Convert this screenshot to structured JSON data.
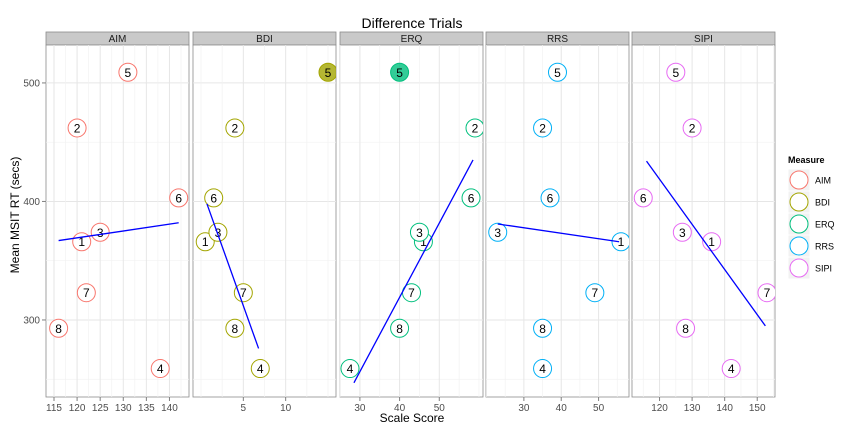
{
  "chart_data": {
    "type": "scatter",
    "title": "Difference Trials",
    "xlabel": "Scale Score",
    "ylabel": "Mean MSIT RT (secs)",
    "ylim": [
      235,
      532
    ],
    "y_ticks": [
      300,
      400,
      500
    ],
    "legend": {
      "title": "Measure",
      "placement": "right",
      "entries": [
        {
          "name": "AIM",
          "color": "#F8766D"
        },
        {
          "name": "BDI",
          "color": "#A3A500"
        },
        {
          "name": "ERQ",
          "color": "#00BF7D"
        },
        {
          "name": "RRS",
          "color": "#00B0F6"
        },
        {
          "name": "SIPI",
          "color": "#E76BF3"
        }
      ]
    },
    "line_color": "#0000FF",
    "panels": [
      {
        "name": "AIM",
        "color": "#F8766D",
        "xlim": [
          115,
          142.5
        ],
        "x_ticks": [
          115,
          120,
          125,
          130,
          135,
          140
        ],
        "points": [
          {
            "label": "1",
            "x": 121,
            "y": 366
          },
          {
            "label": "2",
            "x": 120,
            "y": 462
          },
          {
            "label": "3",
            "x": 125,
            "y": 374
          },
          {
            "label": "4",
            "x": 138,
            "y": 259
          },
          {
            "label": "5",
            "x": 131,
            "y": 509
          },
          {
            "label": "6",
            "x": 142,
            "y": 403
          },
          {
            "label": "7",
            "x": 122,
            "y": 323
          },
          {
            "label": "8",
            "x": 116,
            "y": 293
          }
        ],
        "fit_line": [
          [
            116,
            367
          ],
          [
            142,
            382
          ]
        ]
      },
      {
        "name": "BDI",
        "color": "#A3A500",
        "xlim": [
          0,
          15
        ],
        "x_ticks": [
          5,
          10
        ],
        "points": [
          {
            "label": "1",
            "x": 0.5,
            "y": 366
          },
          {
            "label": "2",
            "x": 4,
            "y": 462
          },
          {
            "label": "3",
            "x": 2,
            "y": 374
          },
          {
            "label": "4",
            "x": 7,
            "y": 259
          },
          {
            "label": "5",
            "x": 15,
            "y": 509,
            "highlighted": true
          },
          {
            "label": "6",
            "x": 1.5,
            "y": 403
          },
          {
            "label": "7",
            "x": 5,
            "y": 323
          },
          {
            "label": "8",
            "x": 4,
            "y": 293
          }
        ],
        "fit_line": [
          [
            0.7,
            398
          ],
          [
            6.8,
            276
          ]
        ]
      },
      {
        "name": "ERQ",
        "color": "#00BF7D",
        "xlim": [
          27,
          59
        ],
        "x_ticks": [
          30,
          40,
          50
        ],
        "points": [
          {
            "label": "1",
            "x": 46,
            "y": 366
          },
          {
            "label": "2",
            "x": 59,
            "y": 462
          },
          {
            "label": "3",
            "x": 45,
            "y": 374
          },
          {
            "label": "4",
            "x": 27.5,
            "y": 259
          },
          {
            "label": "5",
            "x": 40,
            "y": 509,
            "highlighted": true
          },
          {
            "label": "6",
            "x": 58,
            "y": 403
          },
          {
            "label": "7",
            "x": 43,
            "y": 323
          },
          {
            "label": "8",
            "x": 40,
            "y": 293
          }
        ],
        "fit_line": [
          [
            28.5,
            247
          ],
          [
            58.5,
            435
          ]
        ]
      },
      {
        "name": "RRS",
        "color": "#00B0F6",
        "xlim": [
          22,
          56
        ],
        "x_ticks": [
          30,
          40,
          50
        ],
        "points": [
          {
            "label": "1",
            "x": 56,
            "y": 366
          },
          {
            "label": "2",
            "x": 35,
            "y": 462
          },
          {
            "label": "3",
            "x": 23,
            "y": 374
          },
          {
            "label": "4",
            "x": 35,
            "y": 259
          },
          {
            "label": "5",
            "x": 39,
            "y": 509
          },
          {
            "label": "6",
            "x": 37,
            "y": 403
          },
          {
            "label": "7",
            "x": 49,
            "y": 323
          },
          {
            "label": "8",
            "x": 35,
            "y": 293
          }
        ],
        "fit_line": [
          [
            23,
            381
          ],
          [
            55.5,
            366
          ]
        ]
      },
      {
        "name": "SIPI",
        "color": "#E76BF3",
        "xlim": [
          114,
          153
        ],
        "x_ticks": [
          120,
          130,
          140,
          150
        ],
        "points": [
          {
            "label": "1",
            "x": 136,
            "y": 366
          },
          {
            "label": "2",
            "x": 130,
            "y": 462
          },
          {
            "label": "3",
            "x": 127,
            "y": 374
          },
          {
            "label": "4",
            "x": 142,
            "y": 259
          },
          {
            "label": "5",
            "x": 125,
            "y": 509
          },
          {
            "label": "6",
            "x": 115,
            "y": 403
          },
          {
            "label": "7",
            "x": 153,
            "y": 323
          },
          {
            "label": "8",
            "x": 128,
            "y": 293
          }
        ],
        "fit_line": [
          [
            116,
            434
          ],
          [
            152.5,
            295
          ]
        ]
      }
    ]
  }
}
